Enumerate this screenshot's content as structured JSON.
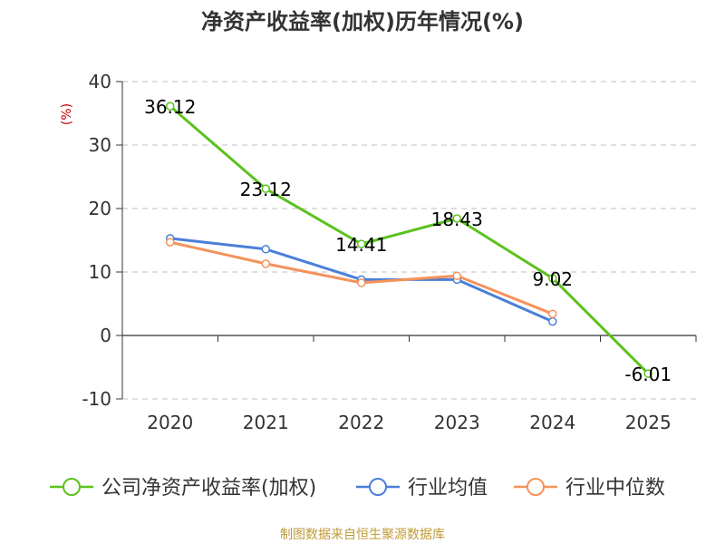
{
  "chart_data": {
    "type": "line",
    "title": "净资产收益率(加权)历年情况(%)",
    "unit_label": "(%)",
    "categories": [
      "2020",
      "2021",
      "2022",
      "2023",
      "2024",
      "2025"
    ],
    "ylim": [
      -10,
      40
    ],
    "yticks": [
      -10,
      0,
      10,
      20,
      30,
      40
    ],
    "grid": true,
    "legend_position": "bottom",
    "series": [
      {
        "name": "公司净资产收益率(加权)",
        "color": "#5bc21e",
        "values": [
          36.12,
          23.12,
          14.41,
          18.43,
          9.02,
          -6.01
        ],
        "labels": [
          "36.12",
          "23.12",
          "14.41",
          "18.43",
          "9.02",
          "-6.01"
        ]
      },
      {
        "name": "行业均值",
        "color": "#4a7fd8",
        "values": [
          15.3,
          13.6,
          8.8,
          8.8,
          2.2,
          null
        ]
      },
      {
        "name": "行业中位数",
        "color": "#f5925a",
        "values": [
          14.7,
          11.3,
          8.3,
          9.4,
          3.4,
          null
        ]
      }
    ]
  },
  "footer": {
    "source": "制图数据来自恒生聚源数据库"
  }
}
